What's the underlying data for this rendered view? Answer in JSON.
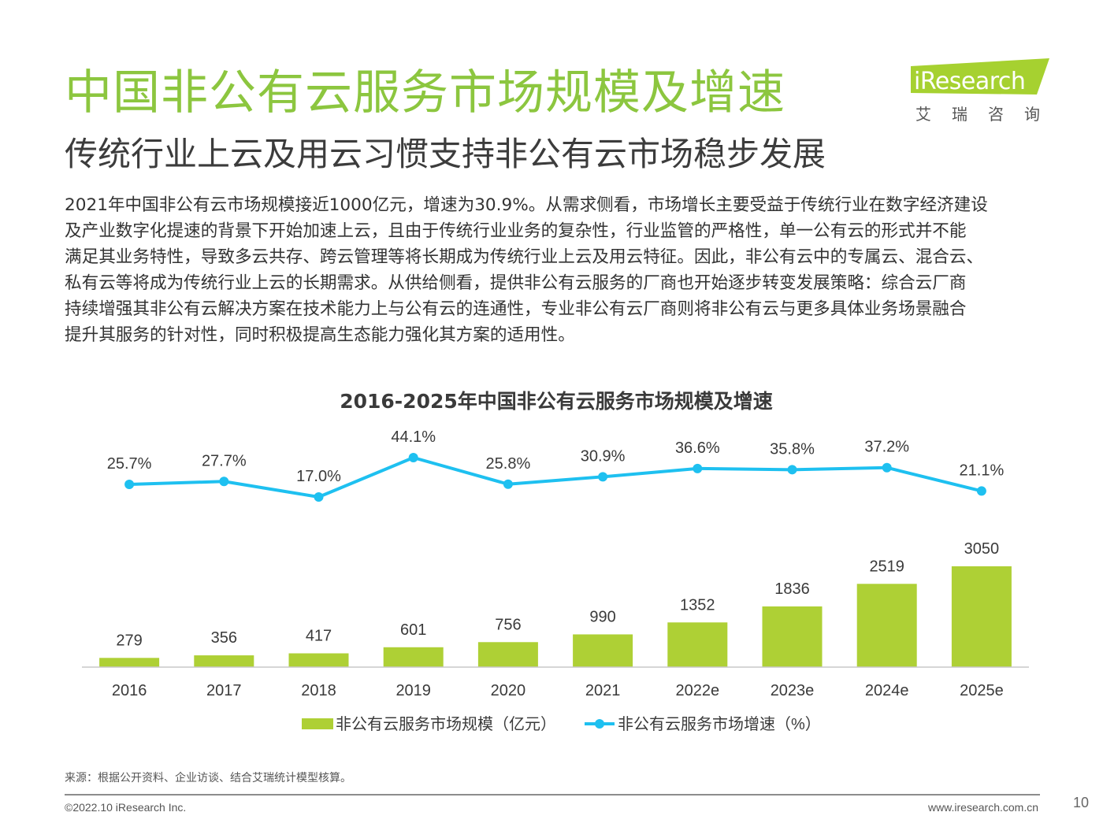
{
  "header": {
    "title": "中国非公有云服务市场规模及增速",
    "subtitle": "传统行业上云及用云习惯支持非公有云市场稳步发展"
  },
  "logo": {
    "brand": "iResearch",
    "brand_cn": "艾瑞咨询",
    "accent_color": "#a6d130"
  },
  "body": {
    "lines": [
      "2021年中国非公有云市场规模接近1000亿元，增速为30.9%。从需求侧看，市场增长主要受益于传统行业在数字经济建设",
      "及产业数字化提速的背景下开始加速上云，且由于传统行业业务的复杂性，行业监管的严格性，单一公有云的形式并不能",
      "满足其业务特性，导致多云共存、跨云管理等将长期成为传统行业上云及用云特征。因此，非公有云中的专属云、混合云、",
      "私有云等将成为传统行业上云的长期需求。从供给侧看，提供非公有云服务的厂商也开始逐步转变发展策略：综合云厂商",
      "持续增强其非公有云解决方案在技术能力上与公有云的连通性，专业非公有云厂商则将非公有云与更多具体业务场景融合",
      "提升其服务的针对性，同时积极提高生态能力强化其方案的适用性。"
    ]
  },
  "chart_data": {
    "type": "bar",
    "title": "2016-2025年中国非公有云服务市场规模及增速",
    "categories": [
      "2016",
      "2017",
      "2018",
      "2019",
      "2020",
      "2021",
      "2022e",
      "2023e",
      "2024e",
      "2025e"
    ],
    "series": [
      {
        "name": "非公有云服务市场规模（亿元）",
        "type": "bar",
        "color": "#aed035",
        "values": [
          279,
          356,
          417,
          601,
          756,
          990,
          1352,
          1836,
          2519,
          3050
        ],
        "labels": [
          "279",
          "356",
          "417",
          "601",
          "756",
          "990",
          "1352",
          "1836",
          "2519",
          "3050"
        ]
      },
      {
        "name": "非公有云服务市场增速（%）",
        "type": "line",
        "color": "#1ec0f0",
        "values": [
          25.7,
          27.7,
          17.0,
          44.1,
          25.8,
          30.9,
          36.6,
          35.8,
          37.2,
          21.1
        ],
        "labels": [
          "25.7%",
          "27.7%",
          "17.0%",
          "44.1%",
          "25.8%",
          "30.9%",
          "36.6%",
          "35.8%",
          "37.2%",
          "21.1%"
        ]
      }
    ],
    "legend_position": "bottom-center",
    "grid": false
  },
  "footer": {
    "source": "来源：根据公开资料、企业访谈、结合艾瑞统计模型核算。",
    "copyright": "©2022.10 iResearch Inc.",
    "website": "www.iresearch.com.cn",
    "page_number": "10"
  }
}
